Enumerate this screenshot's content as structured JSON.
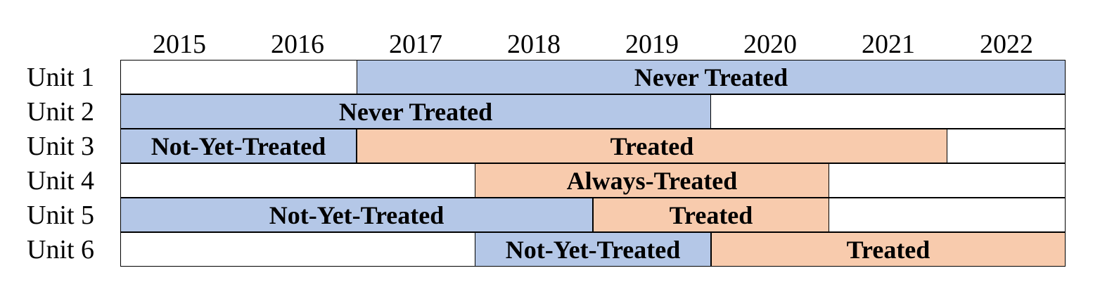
{
  "years": [
    "2015",
    "2016",
    "2017",
    "2018",
    "2019",
    "2020",
    "2021",
    "2022"
  ],
  "colors": {
    "untreated": "#b4c7e7",
    "treated": "#f8cbad",
    "empty": "#ffffff",
    "border": "#000000"
  },
  "units": [
    {
      "label": "Unit 1",
      "segments": [
        {
          "start": 2017,
          "end": 2022,
          "status": "untreated",
          "text": "Never Treated"
        }
      ]
    },
    {
      "label": "Unit 2",
      "segments": [
        {
          "start": 2015,
          "end": 2019,
          "status": "untreated",
          "text": "Never Treated"
        }
      ]
    },
    {
      "label": "Unit 3",
      "segments": [
        {
          "start": 2015,
          "end": 2016,
          "status": "untreated",
          "text": "Not-Yet-Treated"
        },
        {
          "start": 2017,
          "end": 2021,
          "status": "treated",
          "text": "Treated"
        }
      ]
    },
    {
      "label": "Unit 4",
      "segments": [
        {
          "start": 2018,
          "end": 2020,
          "status": "treated",
          "text": "Always-Treated"
        }
      ]
    },
    {
      "label": "Unit 5",
      "segments": [
        {
          "start": 2015,
          "end": 2018,
          "status": "untreated",
          "text": "Not-Yet-Treated"
        },
        {
          "start": 2019,
          "end": 2020,
          "status": "treated",
          "text": "Treated"
        }
      ]
    },
    {
      "label": "Unit 6",
      "segments": [
        {
          "start": 2018,
          "end": 2019,
          "status": "untreated",
          "text": "Not-Yet-Treated"
        },
        {
          "start": 2020,
          "end": 2022,
          "status": "treated",
          "text": "Treated"
        }
      ]
    }
  ]
}
